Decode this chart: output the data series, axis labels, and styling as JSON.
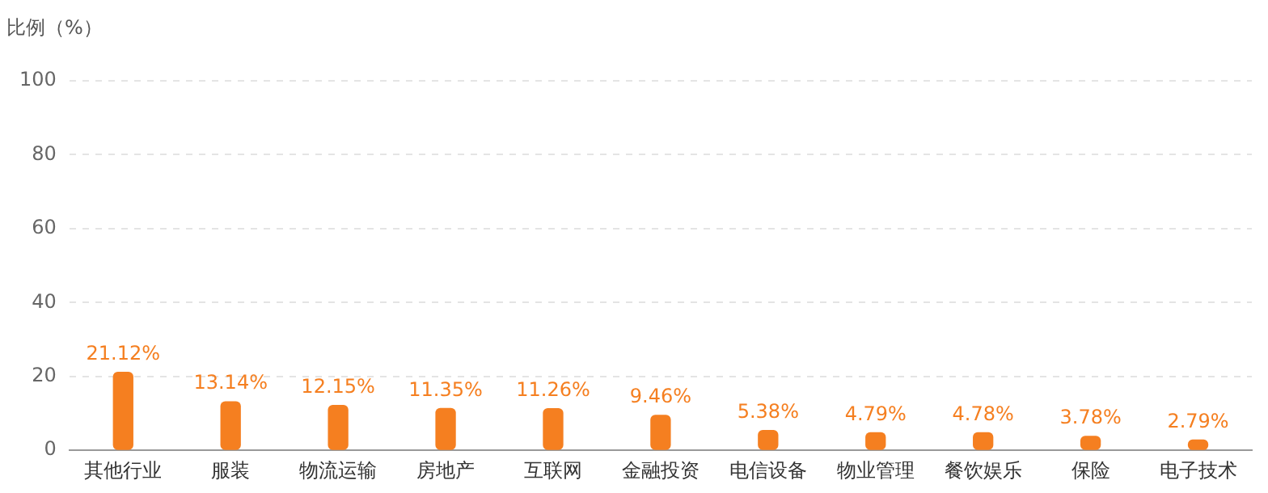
{
  "chart_data": {
    "type": "bar",
    "ylabel": "比例（%）",
    "categories": [
      "其他行业",
      "服装",
      "物流运输",
      "房地产",
      "互联网",
      "金融投资",
      "电信设备",
      "物业管理",
      "餐饮娱乐",
      "保险",
      "电子技术"
    ],
    "values": [
      21.12,
      13.14,
      12.15,
      11.35,
      11.26,
      9.46,
      5.38,
      4.79,
      4.78,
      3.78,
      2.79
    ],
    "value_labels": [
      "21.12%",
      "13.14%",
      "12.15%",
      "11.35%",
      "11.26%",
      "9.46%",
      "5.38%",
      "4.79%",
      "4.78%",
      "3.78%",
      "2.79%"
    ],
    "color": "#f57f20",
    "ylim": [
      0,
      100
    ],
    "yticks": [
      0,
      20,
      40,
      60,
      80,
      100
    ],
    "grid": "y",
    "legend": false
  }
}
